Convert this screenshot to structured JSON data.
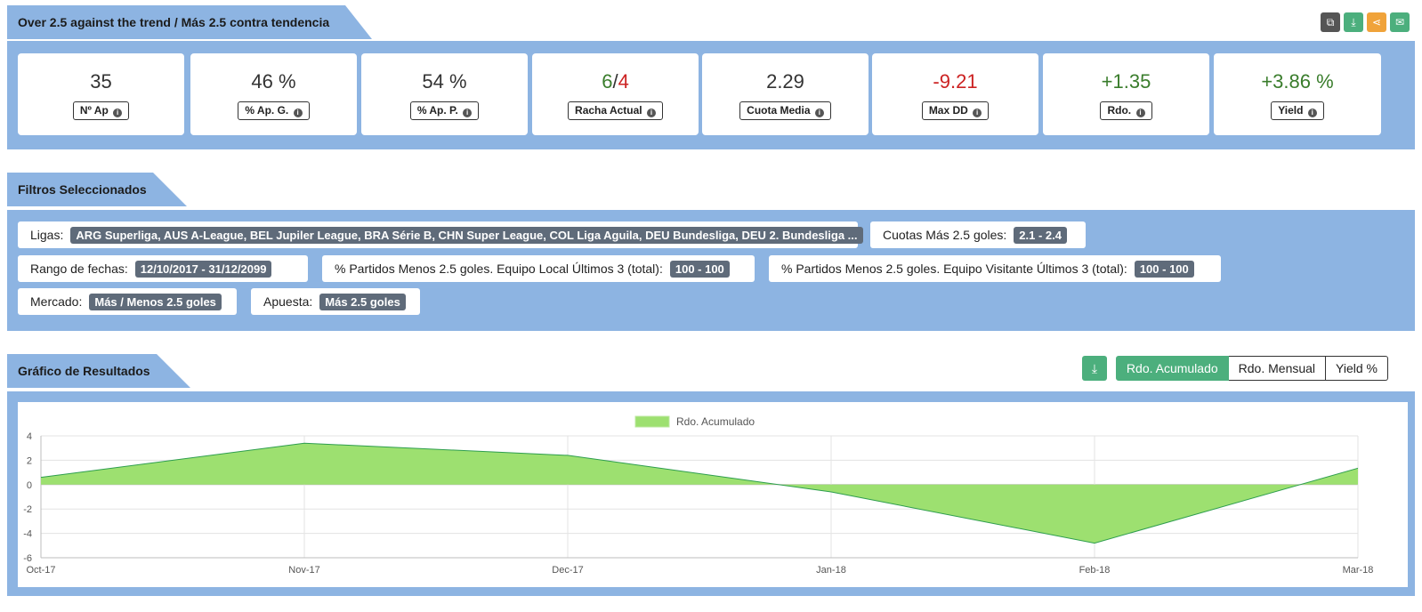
{
  "stats_panel": {
    "title": "Over 2.5 against the trend / Más 2.5 contra tendencia",
    "share_icons": [
      {
        "name": "copy-icon",
        "glyph": "⧉",
        "color": "#555555"
      },
      {
        "name": "download-icon",
        "glyph": "⤓",
        "color": "#4caf7d"
      },
      {
        "name": "share-icon",
        "glyph": "⋖",
        "color": "#f0a33a"
      },
      {
        "name": "email-icon",
        "glyph": "✉",
        "color": "#4caf7d"
      }
    ],
    "cards": [
      {
        "value": "35",
        "label": "Nº Ap"
      },
      {
        "value": "46 %",
        "label": "% Ap. G."
      },
      {
        "value": "54 %",
        "label": "% Ap. P."
      },
      {
        "value_win": "6",
        "value_sep": "/",
        "value_loss": "4",
        "label": "Racha Actual"
      },
      {
        "value": "2.29",
        "label": "Cuota Media"
      },
      {
        "value": "-9.21",
        "label": "Max DD"
      },
      {
        "value": "+1.35",
        "label": "Rdo."
      },
      {
        "value": "+3.86 %",
        "label": "Yield"
      }
    ],
    "info_glyph": "i"
  },
  "filters": {
    "title": "Filtros Seleccionados",
    "chips": [
      {
        "label": "Ligas:",
        "value": "ARG Superliga, AUS A-League, BEL Jupiler League, BRA Série B, CHN Super League, COL Liga Aguila, DEU Bundesliga, DEU 2. Bundesliga ..."
      },
      {
        "label": "Cuotas Más 2.5 goles:",
        "value": "2.1 - 2.4"
      },
      {
        "label": "Rango de fechas:",
        "value": "12/10/2017 - 31/12/2099"
      },
      {
        "label": "% Partidos Menos 2.5 goles. Equipo Local Últimos 3 (total):",
        "value": "100 - 100"
      },
      {
        "label": "% Partidos Menos 2.5 goles. Equipo Visitante Últimos 3 (total):",
        "value": "100 - 100"
      },
      {
        "label": "Mercado:",
        "value": "Más / Menos 2.5 goles"
      },
      {
        "label": "Apuesta:",
        "value": "Más 2.5 goles"
      }
    ]
  },
  "chart_section": {
    "title": "Gráfico de Resultados",
    "download_glyph": "⤓",
    "buttons": [
      "Rdo. Acumulado",
      "Rdo. Mensual",
      "Yield %"
    ],
    "active_button": 0
  },
  "chart_data": {
    "type": "area",
    "x": [
      "Oct-17",
      "Nov-17",
      "Dec-17",
      "Jan-18",
      "Feb-18",
      "Mar-18"
    ],
    "series": [
      {
        "name": "Rdo. Acumulado",
        "values": [
          0.6,
          3.4,
          2.4,
          -0.6,
          -4.8,
          1.35
        ]
      }
    ],
    "ylim": [
      -6,
      4
    ],
    "yticks": [
      4,
      2,
      0,
      -2,
      -4,
      -6
    ],
    "grid": true,
    "legend": "top-center",
    "fill_color": "#9de070",
    "line_color": "#2e9e4e"
  }
}
